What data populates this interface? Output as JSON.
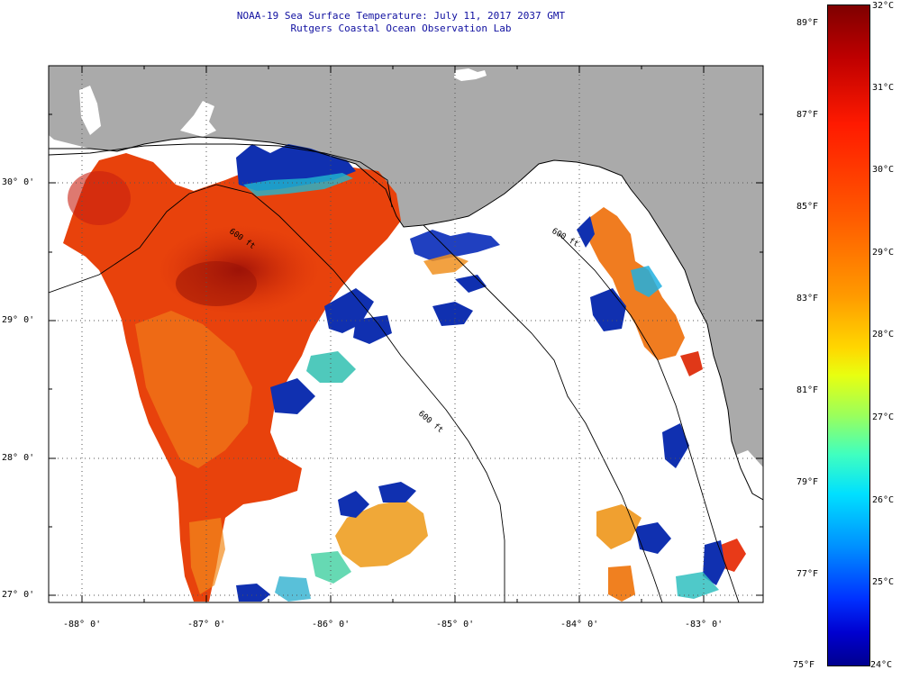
{
  "header": {
    "title": "NOAA-19 Sea Surface Temperature:  July 11, 2017 2037 GMT",
    "subtitle": "Rutgers Coastal Ocean Observation Lab"
  },
  "map": {
    "lat_labels": [
      "30° 0'",
      "29° 0'",
      "28° 0'",
      "27° 0'"
    ],
    "lon_labels": [
      "-88° 0'",
      "-87° 0'",
      "-86° 0'",
      "-85° 0'",
      "-84° 0'",
      "-83° 0'"
    ],
    "isobath_labels": [
      "600 ft",
      "600 ft",
      "600 ft"
    ],
    "colors": {
      "land": "#aaaaaa",
      "ocean_cloud": "#ffffff",
      "warm": "#e8400a",
      "hot": "#b01808",
      "cool": "#1030b0"
    }
  },
  "colorbar": {
    "fahrenheit_labels": [
      "89°F",
      "87°F",
      "85°F",
      "83°F",
      "81°F",
      "79°F",
      "77°F",
      "75°F"
    ],
    "celsius_labels": [
      "32°C",
      "31°C",
      "30°C",
      "29°C",
      "28°C",
      "27°C",
      "26°C",
      "25°C",
      "24°C"
    ]
  }
}
